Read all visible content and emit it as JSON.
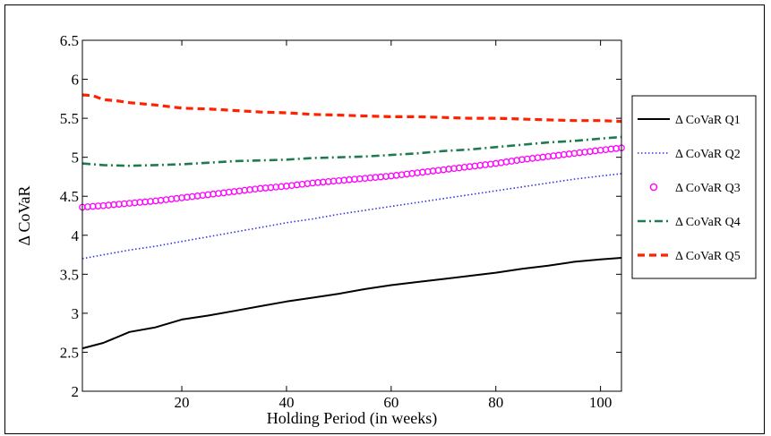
{
  "chart_data": {
    "type": "line",
    "title": "",
    "xlabel": "Holding Period (in weeks)",
    "ylabel": "Δ CoVaR",
    "xlim": [
      1,
      104
    ],
    "ylim": [
      2,
      6.5
    ],
    "xticks": [
      20,
      40,
      60,
      80,
      100
    ],
    "yticks": [
      2,
      2.5,
      3,
      3.5,
      4,
      4.5,
      5,
      5.5,
      6,
      6.5
    ],
    "xtick_labels": [
      "20",
      "40",
      "60",
      "80",
      "100"
    ],
    "ytick_labels": [
      "2",
      "2.5",
      "3",
      "3.5",
      "4",
      "4.5",
      "5",
      "5.5",
      "6",
      "6.5"
    ],
    "grid": false,
    "legend_position": "right, outside",
    "series": [
      {
        "name": "Δ CoVaR Q1",
        "style": "solid",
        "marker": "none",
        "color": "#000000",
        "x": [
          1,
          5,
          10,
          15,
          20,
          25,
          30,
          35,
          40,
          45,
          50,
          55,
          60,
          65,
          70,
          75,
          80,
          85,
          90,
          95,
          100,
          104
        ],
        "values": [
          2.55,
          2.62,
          2.76,
          2.82,
          2.92,
          2.97,
          3.03,
          3.09,
          3.15,
          3.2,
          3.25,
          3.31,
          3.36,
          3.4,
          3.44,
          3.48,
          3.52,
          3.57,
          3.61,
          3.66,
          3.69,
          3.71
        ]
      },
      {
        "name": "Δ CoVaR Q2",
        "style": "dotted",
        "marker": "none",
        "color": "#3333dd",
        "x": [
          1,
          5,
          10,
          15,
          20,
          25,
          30,
          35,
          40,
          45,
          50,
          55,
          60,
          65,
          70,
          75,
          80,
          85,
          90,
          95,
          100,
          104
        ],
        "values": [
          3.7,
          3.75,
          3.81,
          3.86,
          3.92,
          3.98,
          4.04,
          4.1,
          4.16,
          4.21,
          4.27,
          4.32,
          4.37,
          4.42,
          4.47,
          4.52,
          4.57,
          4.62,
          4.67,
          4.72,
          4.76,
          4.79
        ]
      },
      {
        "name": "Δ CoVaR Q3",
        "style": "markers",
        "marker": "circle",
        "color": "#ff00ff",
        "x": [
          1,
          5,
          10,
          15,
          20,
          25,
          30,
          35,
          40,
          45,
          50,
          55,
          60,
          65,
          70,
          75,
          80,
          85,
          90,
          95,
          100,
          104
        ],
        "values": [
          4.36,
          4.38,
          4.41,
          4.44,
          4.48,
          4.52,
          4.56,
          4.6,
          4.63,
          4.67,
          4.7,
          4.73,
          4.76,
          4.8,
          4.84,
          4.88,
          4.92,
          4.97,
          5.01,
          5.05,
          5.09,
          5.12
        ]
      },
      {
        "name": "Δ CoVaR Q4",
        "style": "dashdot",
        "marker": "none",
        "color": "#1f7a4f",
        "x": [
          1,
          5,
          10,
          15,
          20,
          25,
          30,
          35,
          40,
          45,
          50,
          55,
          60,
          65,
          70,
          75,
          80,
          85,
          90,
          95,
          100,
          104
        ],
        "values": [
          4.92,
          4.9,
          4.89,
          4.9,
          4.91,
          4.93,
          4.95,
          4.96,
          4.97,
          4.99,
          5.0,
          5.01,
          5.03,
          5.05,
          5.08,
          5.1,
          5.13,
          5.16,
          5.19,
          5.21,
          5.24,
          5.26
        ]
      },
      {
        "name": "Δ CoVaR Q5",
        "style": "dashed",
        "marker": "none",
        "color": "#ff2200",
        "x": [
          1,
          3,
          5,
          8,
          10,
          15,
          20,
          25,
          30,
          35,
          40,
          45,
          50,
          55,
          60,
          65,
          70,
          75,
          80,
          85,
          90,
          95,
          100,
          104
        ],
        "values": [
          5.8,
          5.79,
          5.74,
          5.72,
          5.7,
          5.67,
          5.63,
          5.62,
          5.6,
          5.58,
          5.57,
          5.55,
          5.54,
          5.53,
          5.52,
          5.52,
          5.51,
          5.5,
          5.5,
          5.49,
          5.48,
          5.47,
          5.47,
          5.46
        ]
      }
    ]
  }
}
